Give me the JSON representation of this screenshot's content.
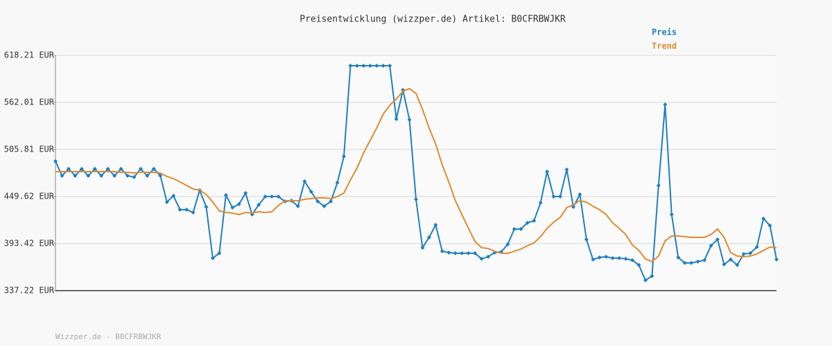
{
  "chart_data": {
    "type": "line",
    "title": "Preisentwicklung (wizzper.de) Artikel: B0CFRBWJKR",
    "footer": "Wizzper.de - B0CFRBWJKR",
    "ylim": [
      337.22,
      618.21
    ],
    "yticks": [
      {
        "value": 337.22,
        "label": "337.22 EUR"
      },
      {
        "value": 393.42,
        "label": "393.42 EUR"
      },
      {
        "value": 449.62,
        "label": "449.62 EUR"
      },
      {
        "value": 505.81,
        "label": "505.81 EUR"
      },
      {
        "value": 562.01,
        "label": "562.01 EUR"
      },
      {
        "value": 618.21,
        "label": "618.21 EUR"
      }
    ],
    "grid": true,
    "legend": "top-right",
    "series": [
      {
        "name": "Preis",
        "color": "#1f7fc0",
        "markers": true,
        "values": [
          491.8,
          474.4,
          482.7,
          474.4,
          482.7,
          474.4,
          482.7,
          474.4,
          482.7,
          474.4,
          482.7,
          474.4,
          472.8,
          482.7,
          474.4,
          482.7,
          474.4,
          443.0,
          450.4,
          433.9,
          433.9,
          430.6,
          457.1,
          437.2,
          376.1,
          381.9,
          451.3,
          436.4,
          440.5,
          453.7,
          428.1,
          439.7,
          449.6,
          449.6,
          449.6,
          443.8,
          444.7,
          438.0,
          467.8,
          455.4,
          443.8,
          438.0,
          443.8,
          466.1,
          497.5,
          605.8,
          605.8,
          605.8,
          605.8,
          605.8,
          605.8,
          605.8,
          542.2,
          576.9,
          541.3,
          446.3,
          388.5,
          400.9,
          415.7,
          384.3,
          382.7,
          381.9,
          381.9,
          381.9,
          381.9,
          375.2,
          377.7,
          382.7,
          383.5,
          392.6,
          410.8,
          410.8,
          418.2,
          420.7,
          442.2,
          479.4,
          449.6,
          449.6,
          481.8,
          437.2,
          452.1,
          398.4,
          374.4,
          376.9,
          377.7,
          376.1,
          376.1,
          375.2,
          373.6,
          367.8,
          349.6,
          354.6,
          462.8,
          559.5,
          428.1,
          376.9,
          370.3,
          370.3,
          371.9,
          373.6,
          390.9,
          398.4,
          368.6,
          374.4,
          367.8,
          381.0,
          381.9,
          389.3,
          423.2,
          414.9,
          374.4
        ]
      },
      {
        "name": "Trend",
        "color": "#e08a2e",
        "markers": false,
        "values": [
          479.4,
          479.4,
          479.4,
          479.4,
          479.4,
          479.4,
          479.4,
          479.4,
          479.4,
          479.4,
          478.5,
          478.5,
          477.7,
          478.5,
          478.5,
          478.5,
          477.7,
          473.6,
          471.1,
          467.0,
          462.8,
          458.7,
          457.1,
          452.1,
          443.0,
          432.3,
          430.6,
          429.8,
          428.1,
          430.6,
          429.8,
          431.4,
          430.6,
          431.4,
          438.9,
          444.7,
          444.7,
          444.7,
          446.3,
          447.1,
          448.0,
          448.0,
          447.1,
          449.6,
          453.7,
          469.4,
          483.5,
          501.7,
          516.6,
          531.4,
          548.0,
          558.7,
          566.1,
          575.2,
          578.5,
          572.7,
          553.7,
          531.4,
          512.4,
          487.6,
          467.0,
          444.7,
          428.1,
          411.6,
          395.9,
          388.5,
          387.6,
          384.3,
          381.9,
          381.9,
          384.3,
          386.8,
          390.9,
          394.2,
          401.7,
          411.6,
          419.0,
          424.8,
          436.4,
          439.7,
          444.7,
          443.0,
          438.0,
          433.9,
          428.1,
          418.2,
          411.6,
          404.2,
          391.8,
          385.2,
          375.2,
          371.9,
          378.5,
          396.7,
          402.5,
          402.5,
          401.7,
          400.9,
          400.9,
          400.9,
          404.2,
          410.8,
          400.9,
          382.7,
          378.5,
          377.7,
          378.5,
          381.0,
          385.2,
          389.3,
          388.5
        ]
      }
    ]
  }
}
